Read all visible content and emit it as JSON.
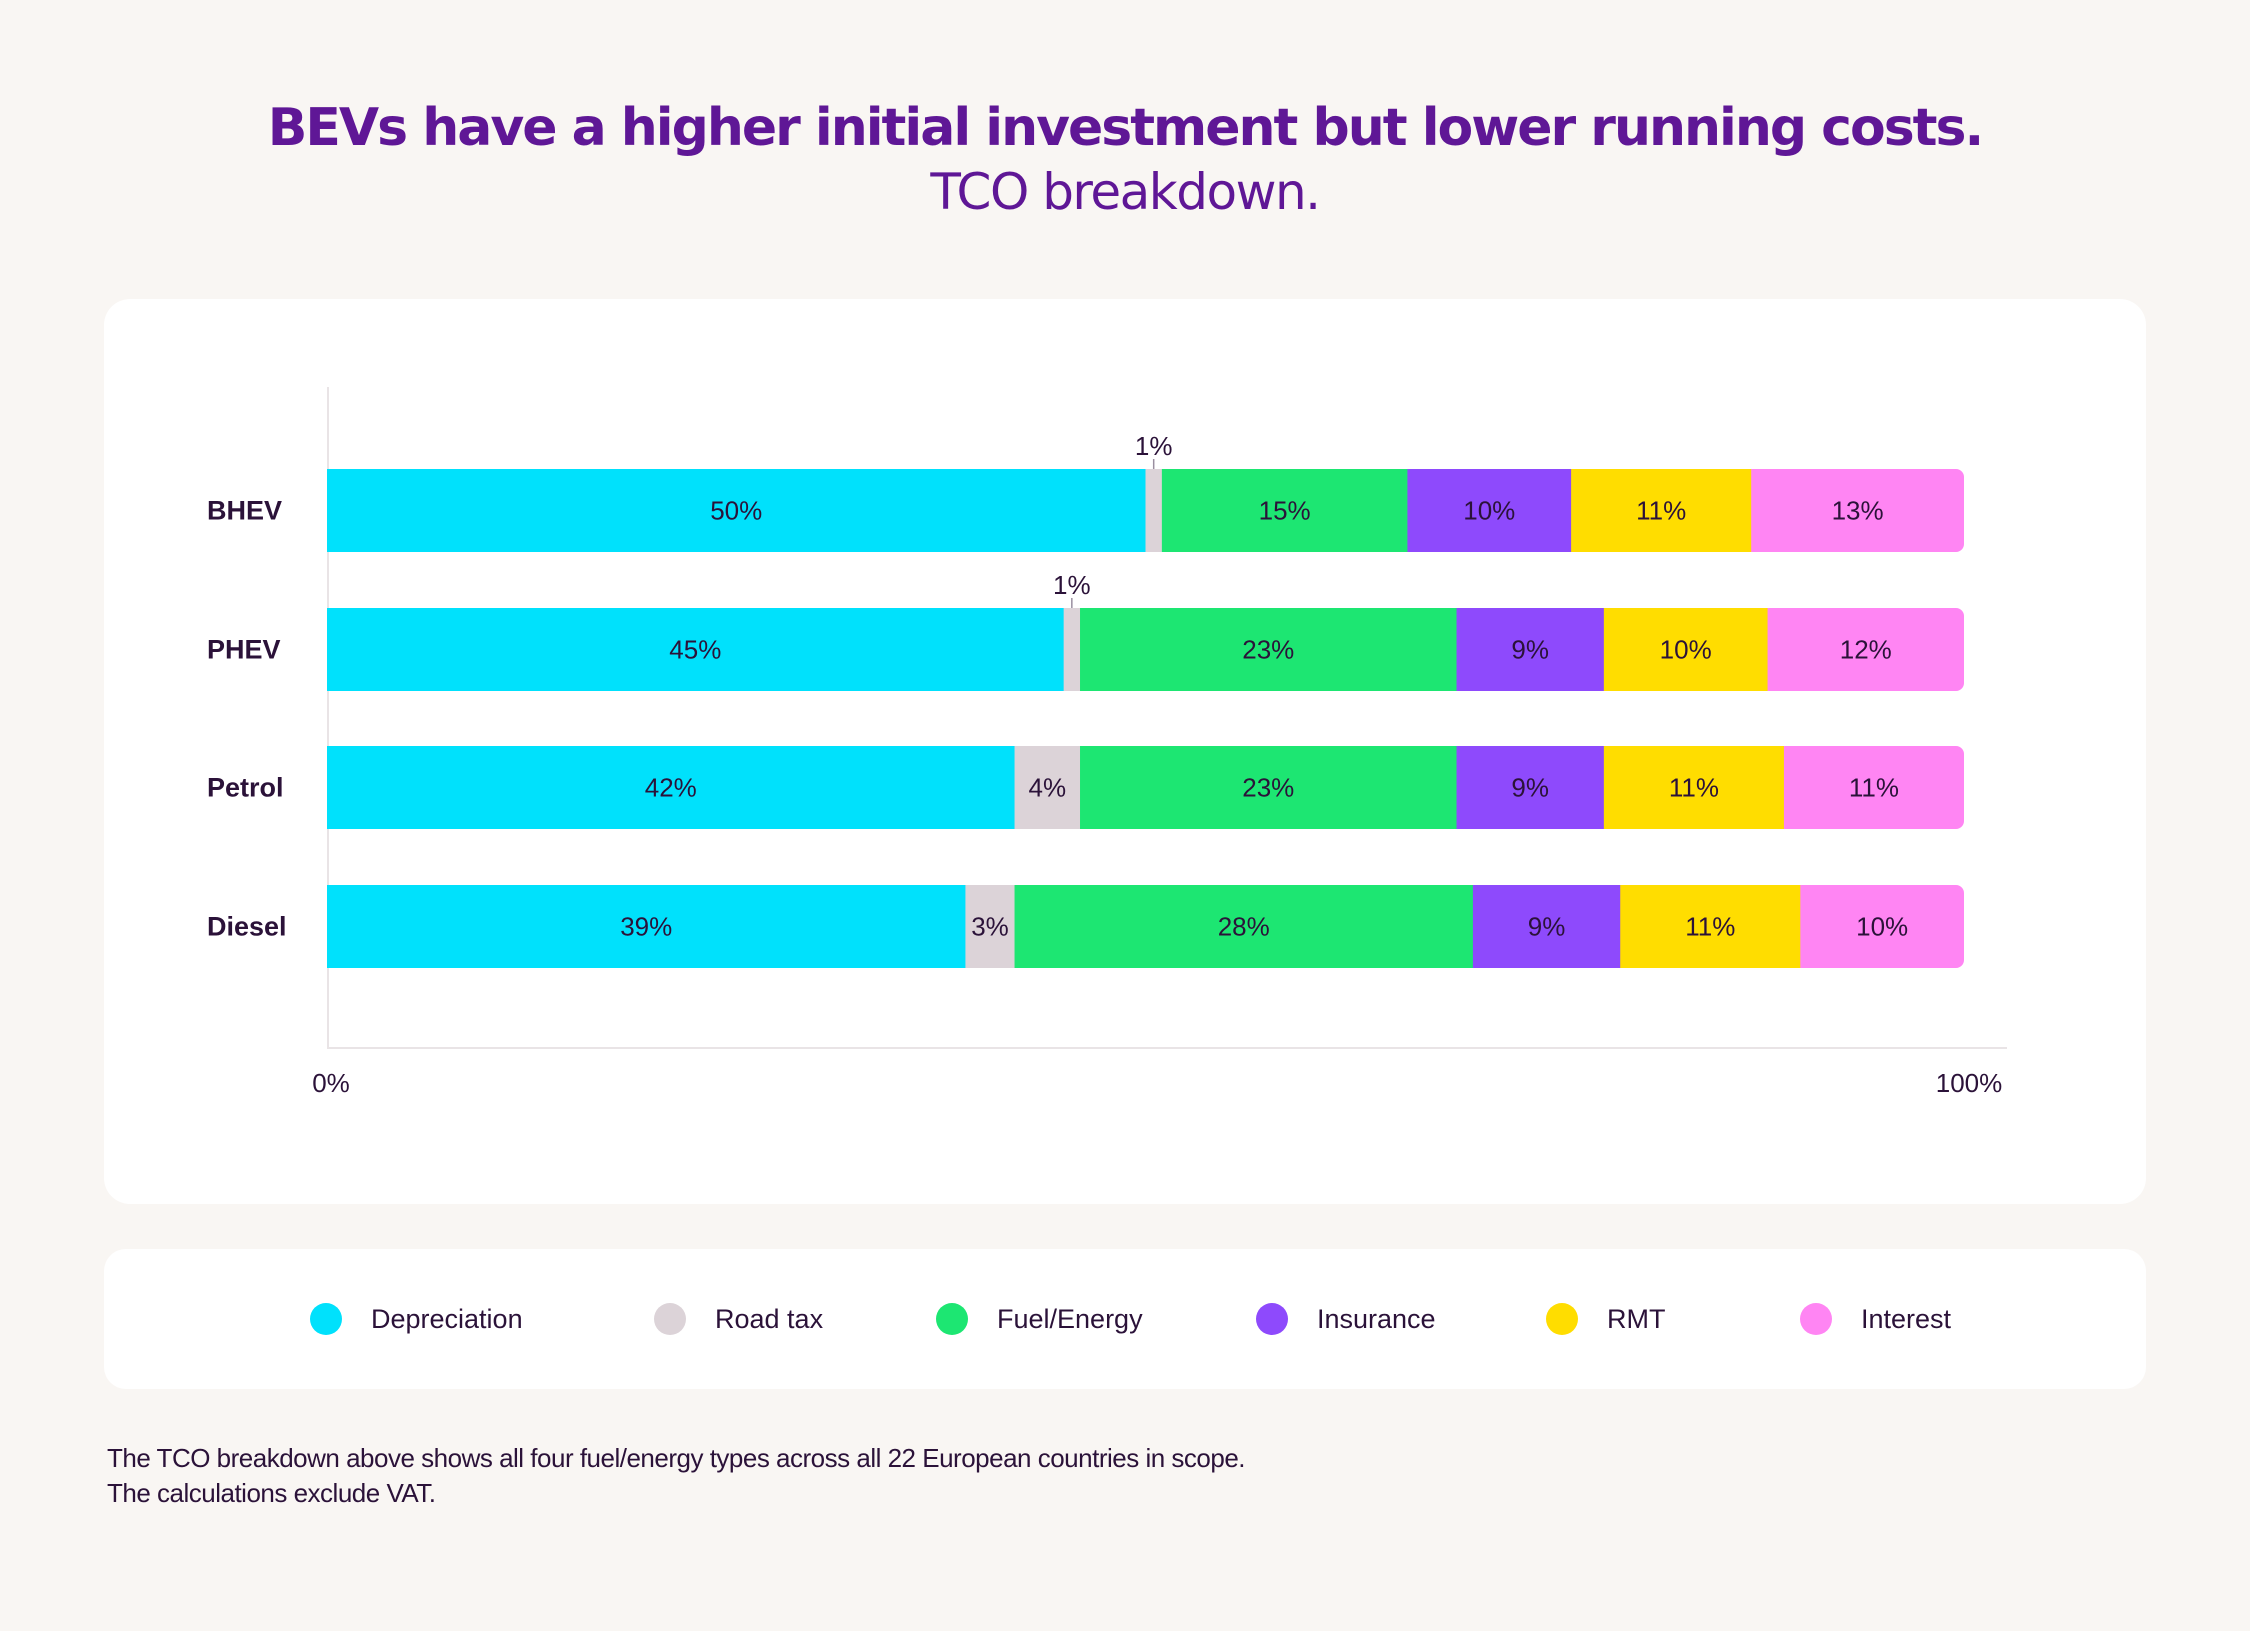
{
  "header": {
    "title": "BEVs have a higher initial investment but lower running costs.",
    "subtitle": "TCO breakdown."
  },
  "footnote": {
    "line1": "The TCO breakdown above shows all four fuel/energy types across all 22 European countries in scope.",
    "line2": "The calculations exclude VAT."
  },
  "chart_data": {
    "type": "bar",
    "orientation": "horizontal",
    "stacked": true,
    "title": "TCO breakdown.",
    "xlabel": "",
    "ylabel": "",
    "xlim": [
      0,
      100
    ],
    "x_tick_labels": [
      "0%",
      "100%"
    ],
    "grid": false,
    "legend_position": "bottom",
    "categories": [
      "BHEV",
      "PHEV",
      "Petrol",
      "Diesel"
    ],
    "series": [
      {
        "name": "Depreciation",
        "color": "#00e1fc",
        "values": [
          50,
          45,
          42,
          39
        ],
        "labels": [
          "50%",
          "45%",
          "42%",
          "39%"
        ]
      },
      {
        "name": "Road tax",
        "color": "#dcd3d8",
        "values": [
          1,
          1,
          4,
          3
        ],
        "labels": [
          "1%",
          "1%",
          "4%",
          "3%"
        ]
      },
      {
        "name": "Fuel/Energy",
        "color": "#1de672",
        "values": [
          15,
          23,
          23,
          28
        ],
        "labels": [
          "15%",
          "23%",
          "23%",
          "28%"
        ]
      },
      {
        "name": "Insurance",
        "color": "#8e4afc",
        "values": [
          10,
          9,
          9,
          9
        ],
        "labels": [
          "10%",
          "9%",
          "9%",
          "9%"
        ]
      },
      {
        "name": "RMT",
        "color": "#ffdd00",
        "values": [
          11,
          10,
          11,
          11
        ],
        "labels": [
          "11%",
          "10%",
          "11%",
          "11%"
        ]
      },
      {
        "name": "Interest",
        "color": "#ff85f3",
        "values": [
          13,
          12,
          11,
          10
        ],
        "labels": [
          "13%",
          "12%",
          "11%",
          "10%"
        ]
      }
    ]
  }
}
